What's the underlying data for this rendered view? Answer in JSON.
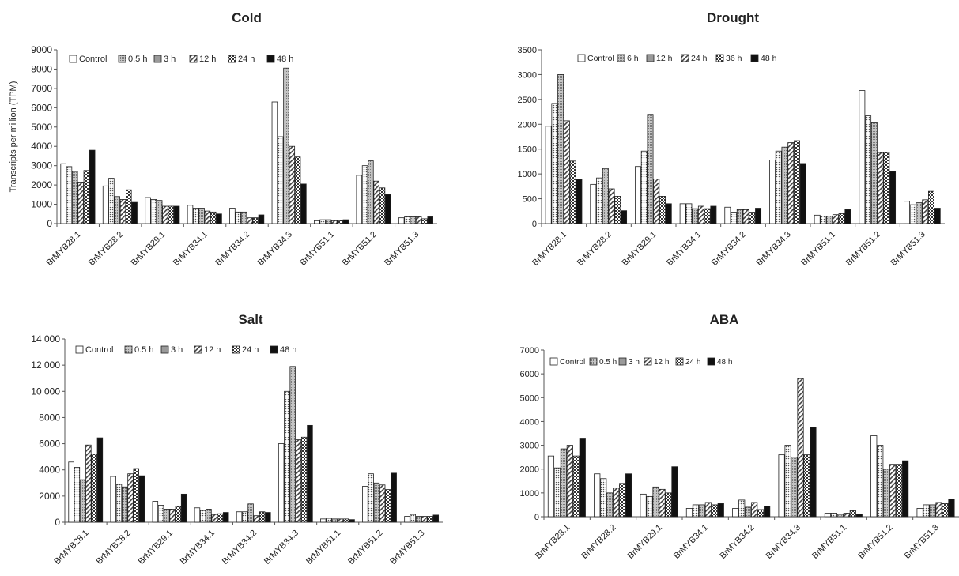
{
  "figure": {
    "y_axis_title": "Transcripts per million (TPM)"
  },
  "chart_data": [
    {
      "type": "bar",
      "title": "Cold",
      "ylabel": "Transcripts per million (TPM)",
      "ylim": [
        0,
        9000
      ],
      "yticks": [
        "0",
        "1000",
        "2000",
        "3000",
        "4000",
        "5000",
        "6000",
        "7000",
        "8000",
        "9000"
      ],
      "grid": false,
      "legend_position": "top-left",
      "categories": [
        "BrMYB28.1",
        "BrMYB28.2",
        "BrMYB29.1",
        "BrMYB34.1",
        "BrMYB34.2",
        "BrMYB34.3",
        "BrMYB51.1",
        "BrMYB51.2",
        "BrMYB51.3"
      ],
      "series": [
        {
          "name": "Control",
          "values": [
            3100,
            1950,
            1350,
            950,
            800,
            6300,
            150,
            2500,
            300
          ]
        },
        {
          "name": "0.5 h",
          "values": [
            2950,
            2350,
            1250,
            800,
            600,
            4500,
            200,
            3000,
            350
          ]
        },
        {
          "name": "3 h",
          "values": [
            2700,
            1400,
            1200,
            800,
            600,
            8050,
            200,
            3250,
            350
          ]
        },
        {
          "name": "12 h",
          "values": [
            2150,
            1250,
            900,
            650,
            300,
            4000,
            150,
            2200,
            350
          ]
        },
        {
          "name": "24 h",
          "values": [
            2750,
            1750,
            900,
            600,
            300,
            3450,
            150,
            1850,
            250
          ]
        },
        {
          "name": "48 h",
          "values": [
            3800,
            1100,
            900,
            500,
            450,
            2050,
            200,
            1500,
            350
          ]
        }
      ]
    },
    {
      "type": "bar",
      "title": "Drought",
      "ylabel": "",
      "ylim": [
        0,
        3500
      ],
      "yticks": [
        "0",
        "500",
        "1000",
        "1500",
        "2000",
        "2500",
        "3000",
        "3500"
      ],
      "grid": false,
      "legend_position": "top-left",
      "categories": [
        "BrMYB28.1",
        "BrMYB28.2",
        "BrMYB29.1",
        "BrMYB34.1",
        "BrMYB34.2",
        "BrMYB34.3",
        "BrMYB51.1",
        "BrMYB51.2",
        "BrMYB51.3"
      ],
      "series": [
        {
          "name": "Control",
          "values": [
            1960,
            790,
            1150,
            400,
            330,
            1280,
            170,
            2680,
            450
          ]
        },
        {
          "name": "6 h",
          "values": [
            2420,
            920,
            1460,
            400,
            230,
            1460,
            150,
            2170,
            380
          ]
        },
        {
          "name": "12 h",
          "values": [
            3000,
            1110,
            2200,
            300,
            280,
            1540,
            150,
            2030,
            420
          ]
        },
        {
          "name": "24 h",
          "values": [
            2070,
            700,
            900,
            350,
            280,
            1630,
            180,
            1430,
            480
          ]
        },
        {
          "name": "36 h",
          "values": [
            1260,
            550,
            550,
            300,
            230,
            1670,
            200,
            1430,
            650
          ]
        },
        {
          "name": "48 h",
          "values": [
            890,
            260,
            400,
            350,
            310,
            1210,
            280,
            1050,
            310
          ]
        }
      ]
    },
    {
      "type": "bar",
      "title": "Salt",
      "ylabel": "",
      "ylim": [
        0,
        14000
      ],
      "yticks": [
        "0",
        "2000",
        "4000",
        "6000",
        "8000",
        "10 000",
        "12 000",
        "14 000"
      ],
      "grid": false,
      "legend_position": "top-left",
      "categories": [
        "BrMYB28.1",
        "BrMYB28.2",
        "BrMYB29.1",
        "BrMYB34.1",
        "BrMYB34.2",
        "BrMYB34.3",
        "BrMYB51.1",
        "BrMYB51.2",
        "BrMYB51.3"
      ],
      "series": [
        {
          "name": "Control",
          "values": [
            4600,
            3500,
            1600,
            1100,
            800,
            6000,
            250,
            2750,
            450
          ]
        },
        {
          "name": "0.5 h",
          "values": [
            4200,
            2900,
            1300,
            900,
            800,
            10000,
            300,
            3700,
            600
          ]
        },
        {
          "name": "3 h",
          "values": [
            3250,
            2700,
            1000,
            1000,
            1400,
            11900,
            250,
            3000,
            450
          ]
        },
        {
          "name": "12 h",
          "values": [
            5900,
            3700,
            1000,
            600,
            500,
            6300,
            250,
            2850,
            450
          ]
        },
        {
          "name": "24 h",
          "values": [
            5200,
            4100,
            1200,
            650,
            800,
            6500,
            250,
            2500,
            450
          ]
        },
        {
          "name": "48 h",
          "values": [
            6450,
            3550,
            2150,
            750,
            750,
            7400,
            200,
            3750,
            550
          ]
        }
      ]
    },
    {
      "type": "bar",
      "title": "ABA",
      "ylabel": "",
      "ylim": [
        0,
        7000
      ],
      "yticks": [
        "0",
        "1000",
        "2000",
        "3000",
        "4000",
        "5000",
        "6000",
        "7000"
      ],
      "grid": false,
      "legend_position": "top-left",
      "categories": [
        "BrMYB28.1",
        "BrMYB28.2",
        "BrMYB29.1",
        "BrMYB34.1",
        "BrMYB34.2",
        "BrMYB34.3",
        "BrMYB51.1",
        "BrMYB51.2",
        "BrMYB51.3"
      ],
      "series": [
        {
          "name": "Control",
          "values": [
            2550,
            1800,
            950,
            350,
            350,
            2600,
            150,
            3400,
            350
          ]
        },
        {
          "name": "0.5 h",
          "values": [
            2050,
            1600,
            850,
            500,
            700,
            3000,
            150,
            3000,
            500
          ]
        },
        {
          "name": "3 h",
          "values": [
            2850,
            1000,
            1250,
            500,
            400,
            2500,
            100,
            2000,
            500
          ]
        },
        {
          "name": "12 h",
          "values": [
            3000,
            1200,
            1150,
            600,
            600,
            5800,
            150,
            2200,
            600
          ]
        },
        {
          "name": "24 h",
          "values": [
            2550,
            1400,
            1000,
            500,
            300,
            2600,
            250,
            2200,
            550
          ]
        },
        {
          "name": "48 h",
          "values": [
            3300,
            1800,
            2100,
            550,
            450,
            3750,
            100,
            2350,
            750
          ]
        }
      ]
    }
  ]
}
